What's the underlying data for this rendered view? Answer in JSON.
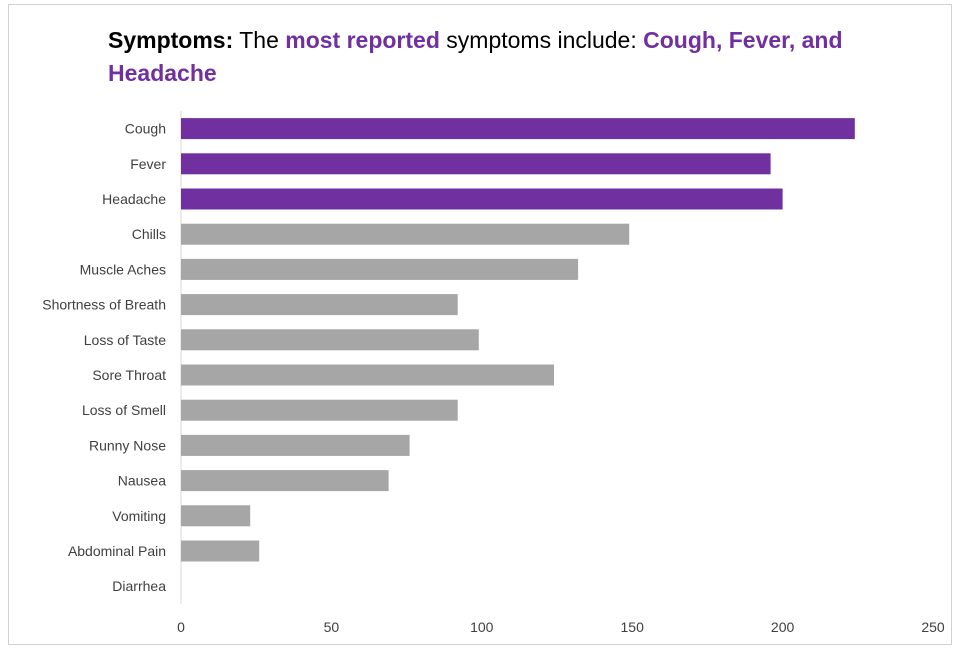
{
  "title": {
    "lead": "Symptoms:",
    "part1": " The ",
    "highlight1": "most reported",
    "part2": " symptoms include: ",
    "highlight2": "Cough, Fever, and Headache"
  },
  "colors": {
    "highlight": "#7030a0",
    "default": "#a6a6a6",
    "axis": "#d9d9d9",
    "text": "#404040"
  },
  "chart_data": {
    "type": "bar",
    "orientation": "horizontal",
    "categories": [
      "Cough",
      "Fever",
      "Headache",
      "Chills",
      "Muscle Aches",
      "Shortness of Breath",
      "Loss of Taste",
      "Sore Throat",
      "Loss of Smell",
      "Runny  Nose",
      "Nausea",
      "Vomiting",
      "Abdominal Pain",
      "Diarrhea"
    ],
    "values": [
      224,
      196,
      200,
      149,
      132,
      92,
      99,
      124,
      92,
      76,
      69,
      23,
      26,
      0
    ],
    "highlighted": [
      "Cough",
      "Fever",
      "Headache"
    ],
    "xlim": [
      0,
      250
    ],
    "xticks": [
      0,
      50,
      100,
      150,
      200,
      250
    ],
    "grid": false,
    "legend": false
  }
}
